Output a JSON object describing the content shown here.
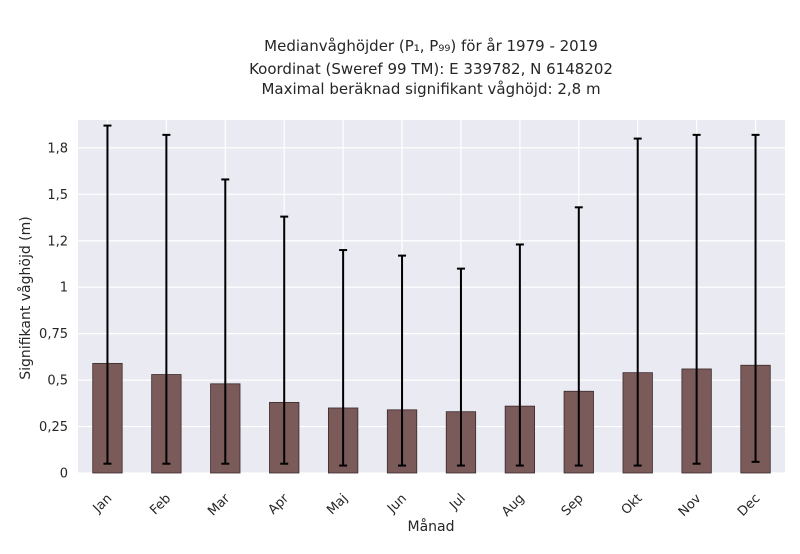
{
  "chart_data": {
    "type": "bar",
    "title_lines": [
      "Medianvåghöjder (P₁, P₉₉) för år 1979 - 2019",
      "Koordinat (Sweref 99 TM): E 339782, N 6148202",
      "Maximal beräknad signifikant våghöjd: 2,8 m"
    ],
    "xlabel": "Månad",
    "ylabel": "Signifikant våghöjd (m)",
    "categories": [
      "Jan",
      "Feb",
      "Mar",
      "Apr",
      "Maj",
      "Jun",
      "Jul",
      "Aug",
      "Sep",
      "Okt",
      "Nov",
      "Dec"
    ],
    "series": [
      {
        "values": [
          0.59,
          0.53,
          0.48,
          0.38,
          0.35,
          0.34,
          0.33,
          0.36,
          0.44,
          0.54,
          0.56,
          0.58
        ],
        "error_low": [
          0.05,
          0.05,
          0.05,
          0.05,
          0.04,
          0.04,
          0.04,
          0.04,
          0.04,
          0.04,
          0.05,
          0.06
        ],
        "error_high": [
          1.87,
          1.82,
          1.58,
          1.38,
          1.2,
          1.17,
          1.1,
          1.23,
          1.43,
          1.8,
          1.82,
          1.82
        ]
      }
    ],
    "ylim": [
      0,
      1.9
    ],
    "yticks": [
      0,
      0.25,
      0.5,
      0.75,
      1,
      1.25,
      1.5,
      1.75
    ],
    "ytick_labels": [
      "0",
      "0,25",
      "0,5",
      "0,75",
      "1",
      "1,2",
      "1,5",
      "1,8"
    ],
    "grid": true,
    "colors": {
      "bar_fill": "#7b5a5a",
      "bar_edge": "#3a2a2a",
      "error_bar": "#000000",
      "plot_background": "#eaeaf2",
      "grid": "#ffffff"
    }
  }
}
